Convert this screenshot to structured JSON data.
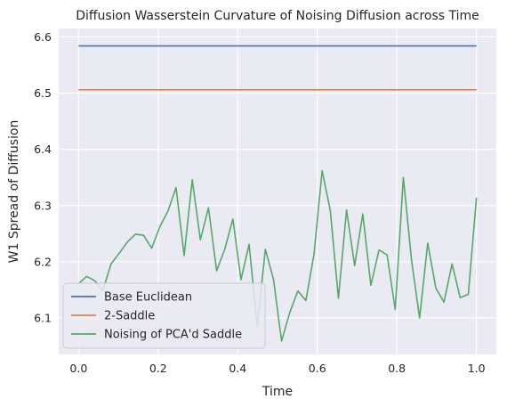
{
  "chart_data": {
    "type": "line",
    "title": "Diffusion Wasserstein Curvature of Noising Diffusion across Time",
    "xlabel": "Time",
    "ylabel": "W1 Spread of Diffusion",
    "xlim": [
      -0.05,
      1.05
    ],
    "ylim": [
      6.035,
      6.615
    ],
    "xticks": [
      "0.0",
      "0.2",
      "0.4",
      "0.6",
      "0.8",
      "1.0"
    ],
    "yticks": [
      "6.1",
      "6.2",
      "6.3",
      "6.4",
      "6.5",
      "6.6"
    ],
    "grid": true,
    "legend_position": "lower-left",
    "background": "#eaeaf2",
    "series": [
      {
        "name": "Base Euclidean",
        "color": "#4c72b0",
        "x": [
          0.0,
          1.0
        ],
        "y": [
          6.584,
          6.584
        ]
      },
      {
        "name": "2-Saddle",
        "color": "#dd8452",
        "x": [
          0.0,
          1.0
        ],
        "y": [
          6.506,
          6.506
        ]
      },
      {
        "name": "Noising of PCA'd Saddle",
        "color": "#55a868",
        "x": [
          0.0,
          0.0204,
          0.0408,
          0.0612,
          0.0816,
          0.102,
          0.1224,
          0.1429,
          0.1633,
          0.1837,
          0.2041,
          0.2245,
          0.2449,
          0.2653,
          0.2857,
          0.3061,
          0.3265,
          0.3469,
          0.3673,
          0.3878,
          0.4082,
          0.4286,
          0.449,
          0.4694,
          0.4898,
          0.5102,
          0.5306,
          0.551,
          0.5714,
          0.5918,
          0.6122,
          0.6327,
          0.6531,
          0.6735,
          0.6939,
          0.7143,
          0.7347,
          0.7551,
          0.7755,
          0.7959,
          0.8163,
          0.8367,
          0.8571,
          0.8776,
          0.898,
          0.9184,
          0.9388,
          0.9592,
          0.9796,
          1.0
        ],
        "y": [
          6.161,
          6.174,
          6.166,
          6.149,
          6.196,
          6.215,
          6.235,
          6.249,
          6.247,
          6.224,
          6.262,
          6.29,
          6.332,
          6.211,
          6.346,
          6.239,
          6.296,
          6.184,
          6.222,
          6.276,
          6.168,
          6.231,
          6.085,
          6.222,
          6.169,
          6.059,
          6.109,
          6.148,
          6.131,
          6.214,
          6.362,
          6.291,
          6.135,
          6.292,
          6.193,
          6.285,
          6.158,
          6.221,
          6.212,
          6.115,
          6.35,
          6.204,
          6.1,
          6.233,
          6.153,
          6.128,
          6.196,
          6.136,
          6.142,
          6.314
        ]
      }
    ]
  }
}
